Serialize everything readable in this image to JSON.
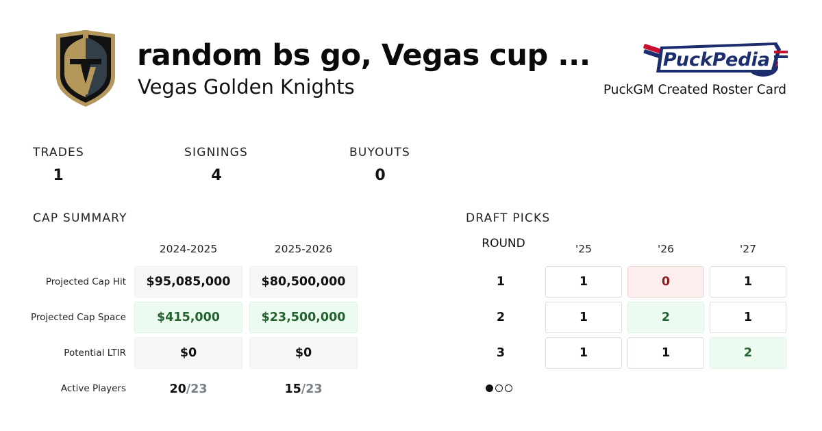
{
  "header": {
    "title": "random bs go, Vegas cup ...",
    "team": "Vegas Golden Knights",
    "brand_logo_text": "PuckPedia",
    "caption": "PuckGM Created Roster Card"
  },
  "stats": {
    "trades_label": "TRADES",
    "trades_value": "1",
    "signings_label": "SIGNINGS",
    "signings_value": "4",
    "buyouts_label": "BUYOUTS",
    "buyouts_value": "0"
  },
  "cap_summary": {
    "heading": "CAP SUMMARY",
    "seasons": [
      "2024-2025",
      "2025-2026"
    ],
    "rows": [
      {
        "label": "Projected Cap Hit",
        "values": [
          "$95,085,000",
          "$80,500,000"
        ]
      },
      {
        "label": "Projected Cap Space",
        "values": [
          "$415,000",
          "$23,500,000"
        ]
      },
      {
        "label": "Potential LTIR",
        "values": [
          "$0",
          "$0"
        ]
      }
    ],
    "active_players": {
      "label": "Active Players",
      "values": [
        {
          "count": "20",
          "max": "/23"
        },
        {
          "count": "15",
          "max": "/23"
        }
      ]
    }
  },
  "draft_picks": {
    "heading": "DRAFT PICKS",
    "round_label": "ROUND",
    "years": [
      "'25",
      "'26",
      "'27"
    ],
    "rounds": [
      {
        "round": "1",
        "picks": [
          "1",
          "0",
          "1"
        ]
      },
      {
        "round": "2",
        "picks": [
          "1",
          "2",
          "1"
        ]
      },
      {
        "round": "3",
        "picks": [
          "1",
          "1",
          "2"
        ]
      }
    ],
    "page_indicator": {
      "total": 3,
      "active": 1
    }
  },
  "colors": {
    "positive_bg": "#edfaf0",
    "positive_text": "#22632f",
    "negative_bg": "#fdeeee",
    "negative_text": "#8a1f1f",
    "neutral_bg": "#f6f7f9",
    "vgk_gold": "#b4975a",
    "vgk_steel": "#333f48",
    "pp_navy": "#1d2e6e",
    "pp_red": "#c8102e"
  }
}
